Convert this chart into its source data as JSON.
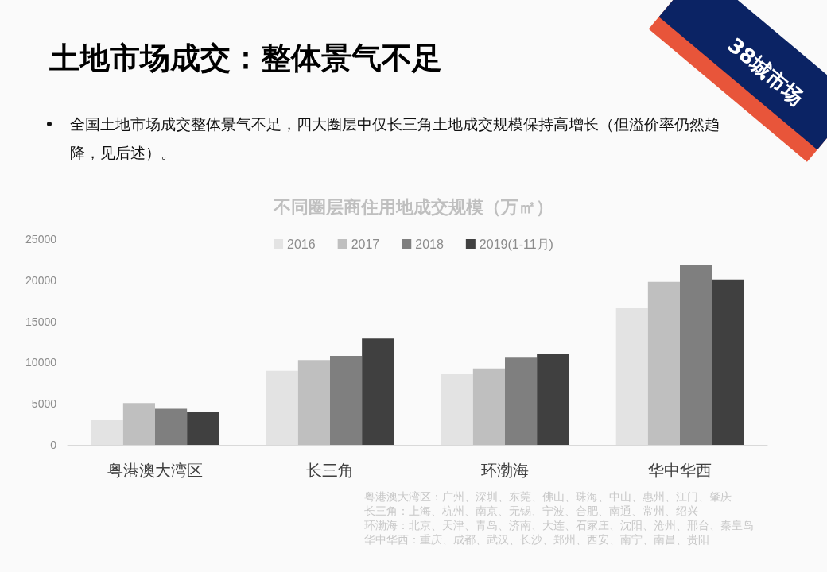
{
  "chart_data": {
    "type": "bar",
    "title": "土地市场成交：整体景气不足",
    "subtitle": "不同圈层商住用地成交规模（万㎡）",
    "annotations": [
      "全国土地市场成交整体景气不足，四大圈层中仅长三角土地成交规模保持高增长（但溢价率仍然趋降，见后述）。",
      "粤港澳大湾区：广州、深圳、东莞、佛山、珠海、中山、惠州、江门、肇庆",
      "长三角：上海、杭州、南京、无锡、宁波、合肥、南通、常州、绍兴",
      "环渤海：北京、天津、青岛、济南、大连、石家庄、沈阳、沧州、邢台、秦皇岛",
      "华中华西：重庆、成都、武汉、长沙、郑州、西安、南宁、南昌、贵阳",
      "38城市场"
    ],
    "categories": [
      "粤港澳大湾区",
      "长三角",
      "环渤海",
      "华中华西"
    ],
    "series": [
      {
        "name": "2016",
        "color": "#e3e3e3",
        "values": [
          3000,
          9000,
          8600,
          16600
        ]
      },
      {
        "name": "2017",
        "color": "#bfbfbf",
        "values": [
          5100,
          10300,
          9300,
          19800
        ]
      },
      {
        "name": "2018",
        "color": "#7f7f7f",
        "values": [
          4400,
          10800,
          10600,
          21900
        ]
      },
      {
        "name": "2019(1-11月)",
        "color": "#404040",
        "values": [
          4000,
          12900,
          11100,
          20100
        ]
      }
    ],
    "ylim": [
      0,
      25000
    ],
    "yticks": [
      0,
      5000,
      10000,
      15000,
      20000,
      25000
    ],
    "grid": false,
    "legend": "top"
  }
}
